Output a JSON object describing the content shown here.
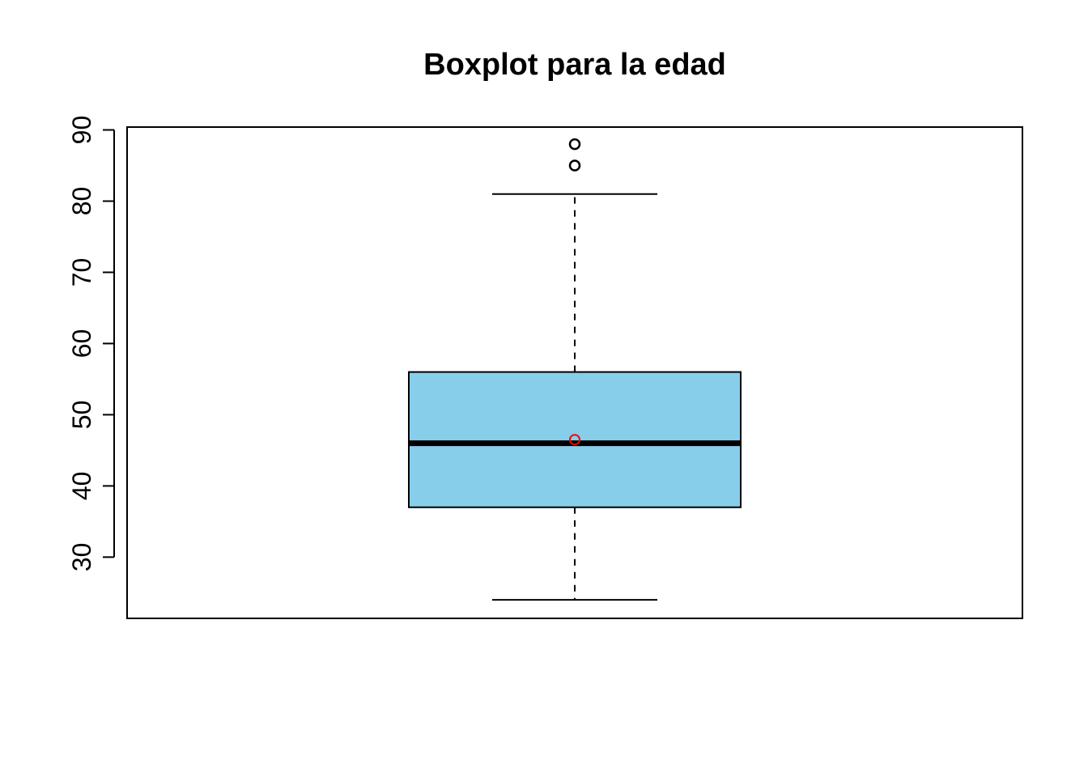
{
  "chart_data": {
    "type": "boxplot",
    "title": "Boxplot para la edad",
    "xlabel": "",
    "ylabel": "",
    "ylim": [
      21.4,
      90.4
    ],
    "yticks": [
      30,
      40,
      50,
      60,
      70,
      80,
      90
    ],
    "grid": false,
    "series": [
      {
        "whisker_low": 24,
        "q1": 37,
        "median": 46,
        "q3": 56,
        "whisker_high": 81,
        "mean": 46.5,
        "outliers": [
          85,
          88
        ]
      }
    ],
    "colors": {
      "box_fill": "#87CEEB",
      "stroke": "#000000",
      "mean_marker": "#FF0000",
      "background": "#FFFFFF"
    }
  }
}
